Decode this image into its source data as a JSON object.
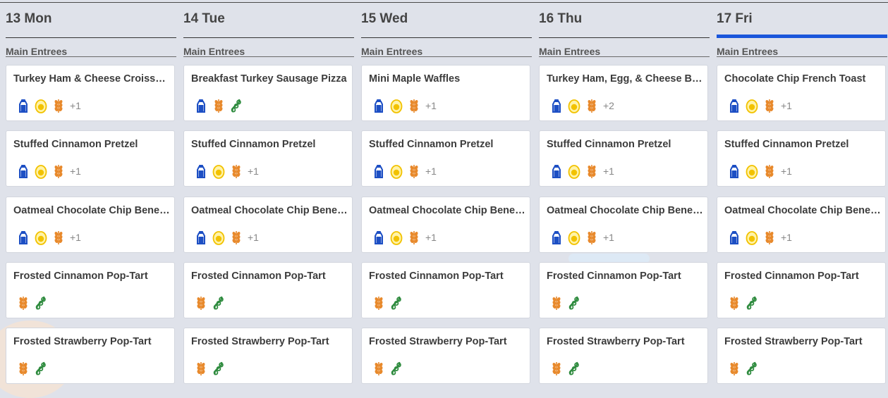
{
  "more_label": "+1",
  "days": [
    {
      "label": "13 Mon",
      "section": "Main Entrees",
      "active": false,
      "items": [
        {
          "title": "Turkey Ham & Cheese Croissant",
          "icons": [
            "milk-icon",
            "egg-icon",
            "wheat-icon"
          ],
          "more": "+1"
        },
        {
          "title": "Stuffed Cinnamon Pretzel",
          "icons": [
            "milk-icon",
            "egg-icon",
            "wheat-icon"
          ],
          "more": "+1"
        },
        {
          "title": "Oatmeal Chocolate Chip BeneFit Bar",
          "icons": [
            "milk-icon",
            "egg-icon",
            "wheat-icon"
          ],
          "more": "+1"
        },
        {
          "title": "Frosted Cinnamon Pop-Tart",
          "icons": [
            "wheat-icon",
            "soy-icon"
          ],
          "more": ""
        },
        {
          "title": "Frosted Strawberry Pop-Tart",
          "icons": [
            "wheat-icon",
            "soy-icon"
          ],
          "more": ""
        }
      ]
    },
    {
      "label": "14 Tue",
      "section": "Main Entrees",
      "active": false,
      "items": [
        {
          "title": "Breakfast Turkey Sausage Pizza",
          "icons": [
            "milk-icon",
            "wheat-icon",
            "soy-icon"
          ],
          "more": ""
        },
        {
          "title": "Stuffed Cinnamon Pretzel",
          "icons": [
            "milk-icon",
            "egg-icon",
            "wheat-icon"
          ],
          "more": "+1"
        },
        {
          "title": "Oatmeal Chocolate Chip BeneFit Bar",
          "icons": [
            "milk-icon",
            "egg-icon",
            "wheat-icon"
          ],
          "more": "+1"
        },
        {
          "title": "Frosted Cinnamon Pop-Tart",
          "icons": [
            "wheat-icon",
            "soy-icon"
          ],
          "more": ""
        },
        {
          "title": "Frosted Strawberry Pop-Tart",
          "icons": [
            "wheat-icon",
            "soy-icon"
          ],
          "more": ""
        }
      ]
    },
    {
      "label": "15 Wed",
      "section": "Main Entrees",
      "active": false,
      "items": [
        {
          "title": "Mini Maple Waffles",
          "icons": [
            "milk-icon",
            "egg-icon",
            "wheat-icon"
          ],
          "more": "+1"
        },
        {
          "title": "Stuffed Cinnamon Pretzel",
          "icons": [
            "milk-icon",
            "egg-icon",
            "wheat-icon"
          ],
          "more": "+1"
        },
        {
          "title": "Oatmeal Chocolate Chip BeneFit Bar",
          "icons": [
            "milk-icon",
            "egg-icon",
            "wheat-icon"
          ],
          "more": "+1"
        },
        {
          "title": "Frosted Cinnamon Pop-Tart",
          "icons": [
            "wheat-icon",
            "soy-icon"
          ],
          "more": ""
        },
        {
          "title": "Frosted Strawberry Pop-Tart",
          "icons": [
            "wheat-icon",
            "soy-icon"
          ],
          "more": ""
        }
      ]
    },
    {
      "label": "16 Thu",
      "section": "Main Entrees",
      "active": false,
      "items": [
        {
          "title": "Turkey Ham, Egg, & Cheese Bagel",
          "icons": [
            "milk-icon",
            "egg-icon",
            "wheat-icon"
          ],
          "more": "+2"
        },
        {
          "title": "Stuffed Cinnamon Pretzel",
          "icons": [
            "milk-icon",
            "egg-icon",
            "wheat-icon"
          ],
          "more": "+1"
        },
        {
          "title": "Oatmeal Chocolate Chip BeneFit Bar",
          "icons": [
            "milk-icon",
            "egg-icon",
            "wheat-icon"
          ],
          "more": "+1"
        },
        {
          "title": "Frosted Cinnamon Pop-Tart",
          "icons": [
            "wheat-icon",
            "soy-icon"
          ],
          "more": ""
        },
        {
          "title": "Frosted Strawberry Pop-Tart",
          "icons": [
            "wheat-icon",
            "soy-icon"
          ],
          "more": ""
        }
      ]
    },
    {
      "label": "17 Fri",
      "section": "Main Entrees",
      "active": true,
      "items": [
        {
          "title": "Chocolate Chip French Toast",
          "icons": [
            "milk-icon",
            "egg-icon",
            "wheat-icon"
          ],
          "more": "+1"
        },
        {
          "title": "Stuffed Cinnamon Pretzel",
          "icons": [
            "milk-icon",
            "egg-icon",
            "wheat-icon"
          ],
          "more": "+1"
        },
        {
          "title": "Oatmeal Chocolate Chip BeneFit Bar",
          "icons": [
            "milk-icon",
            "egg-icon",
            "wheat-icon"
          ],
          "more": "+1"
        },
        {
          "title": "Frosted Cinnamon Pop-Tart",
          "icons": [
            "wheat-icon",
            "soy-icon"
          ],
          "more": ""
        },
        {
          "title": "Frosted Strawberry Pop-Tart",
          "icons": [
            "wheat-icon",
            "soy-icon"
          ],
          "more": ""
        }
      ]
    }
  ],
  "colors": {
    "accent": "#1a56db",
    "milk": "#1d4fc4",
    "egg": "#f2c200",
    "wheat": "#e8892b",
    "soy": "#2e8b3e"
  }
}
